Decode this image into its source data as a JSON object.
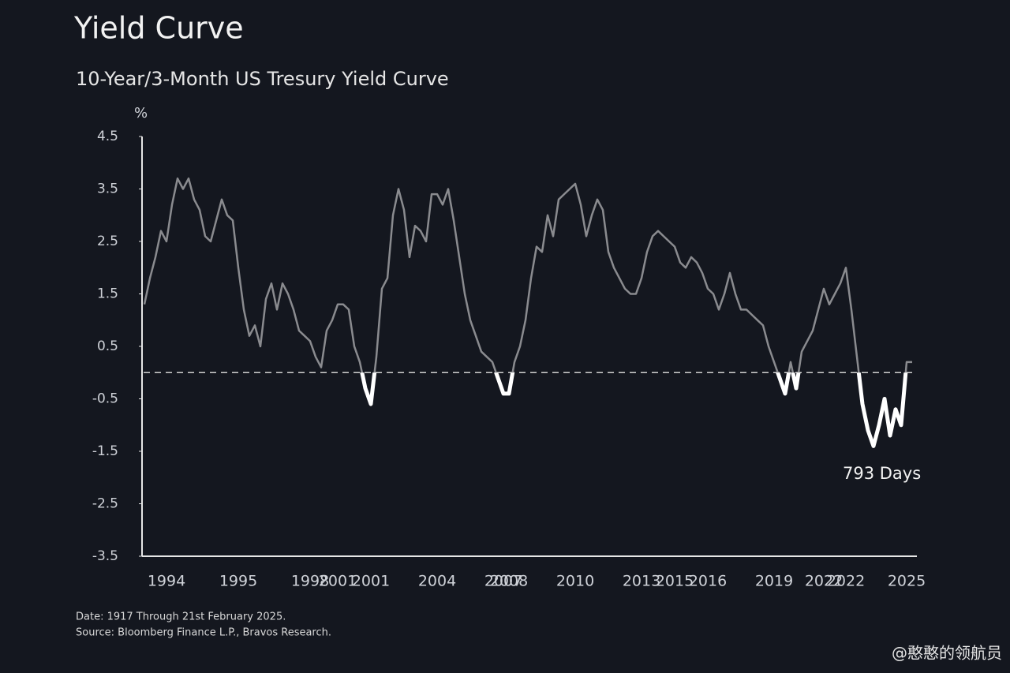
{
  "chart_data": {
    "type": "line",
    "title": "Yield Curve",
    "subtitle": "10-Year/3-Month US Tresury Yield Curve",
    "y_label": "%",
    "annotation": "793 Days",
    "footnotes": [
      "Date: 1917 Through 21st February 2025.",
      "Source: Bloomberg Finance L.P., Bravos Research."
    ],
    "watermark": "@憨憨的领航员",
    "color": "#8a8b8f",
    "inversion_color": "#ffffff",
    "hline": 0,
    "ylim": [
      -3.5,
      4.5
    ],
    "yticks": [
      4.5,
      3.5,
      2.5,
      1.5,
      0.5,
      -0.5,
      -1.5,
      -2.5,
      -3.5
    ],
    "categories": [
      null,
      null,
      null,
      null,
      "1994",
      null,
      null,
      null,
      null,
      null,
      null,
      null,
      null,
      null,
      null,
      null,
      null,
      "1995",
      null,
      null,
      null,
      null,
      null,
      null,
      null,
      null,
      null,
      null,
      null,
      null,
      "1998",
      null,
      null,
      null,
      null,
      "2001",
      null,
      null,
      null,
      null,
      null,
      "2001",
      null,
      null,
      null,
      null,
      null,
      null,
      null,
      null,
      null,
      null,
      null,
      "2004",
      null,
      null,
      null,
      null,
      null,
      null,
      null,
      null,
      null,
      null,
      null,
      "2007",
      "2008",
      null,
      null,
      null,
      null,
      null,
      null,
      null,
      null,
      null,
      null,
      null,
      "2010",
      null,
      null,
      null,
      null,
      null,
      null,
      null,
      null,
      null,
      null,
      null,
      "2013",
      null,
      null,
      null,
      null,
      null,
      "2015",
      null,
      null,
      null,
      null,
      null,
      "2016",
      null,
      null,
      null,
      null,
      null,
      null,
      null,
      null,
      null,
      null,
      null,
      "2019",
      null,
      null,
      null,
      null,
      null,
      null,
      null,
      null,
      "2022",
      null,
      null,
      null,
      "2022",
      null,
      null,
      null,
      null,
      null,
      null,
      null,
      null,
      null,
      null,
      "2025",
      null
    ],
    "values": [
      1.3,
      1.8,
      2.2,
      2.7,
      2.5,
      3.2,
      3.7,
      3.5,
      3.7,
      3.3,
      3.1,
      2.6,
      2.5,
      2.9,
      3.3,
      3.0,
      2.9,
      2.0,
      1.2,
      0.7,
      0.9,
      0.5,
      1.4,
      1.7,
      1.2,
      1.7,
      1.5,
      1.2,
      0.8,
      0.7,
      0.6,
      0.3,
      0.1,
      0.8,
      1.0,
      1.3,
      1.3,
      1.2,
      0.5,
      0.2,
      -0.3,
      -0.6,
      0.3,
      1.6,
      1.8,
      3.0,
      3.5,
      3.1,
      2.2,
      2.8,
      2.7,
      2.5,
      3.4,
      3.4,
      3.2,
      3.5,
      2.9,
      2.2,
      1.5,
      1.0,
      0.7,
      0.4,
      0.3,
      0.2,
      -0.1,
      -0.4,
      -0.4,
      0.2,
      0.5,
      1.0,
      1.8,
      2.4,
      2.3,
      3.0,
      2.6,
      3.3,
      3.4,
      3.5,
      3.6,
      3.2,
      2.6,
      3.0,
      3.3,
      3.1,
      2.3,
      2.0,
      1.8,
      1.6,
      1.5,
      1.5,
      1.8,
      2.3,
      2.6,
      2.7,
      2.6,
      2.5,
      2.4,
      2.1,
      2.0,
      2.2,
      2.1,
      1.9,
      1.6,
      1.5,
      1.2,
      1.5,
      1.9,
      1.5,
      1.2,
      1.2,
      1.1,
      1.0,
      0.9,
      0.5,
      0.2,
      -0.1,
      -0.4,
      0.2,
      -0.3,
      0.4,
      0.6,
      0.8,
      1.2,
      1.6,
      1.3,
      1.5,
      1.7,
      2.0,
      1.2,
      0.3,
      -0.6,
      -1.1,
      -1.4,
      -1.0,
      -0.5,
      -1.2,
      -0.7,
      -1.0,
      0.2,
      0.2
    ]
  }
}
